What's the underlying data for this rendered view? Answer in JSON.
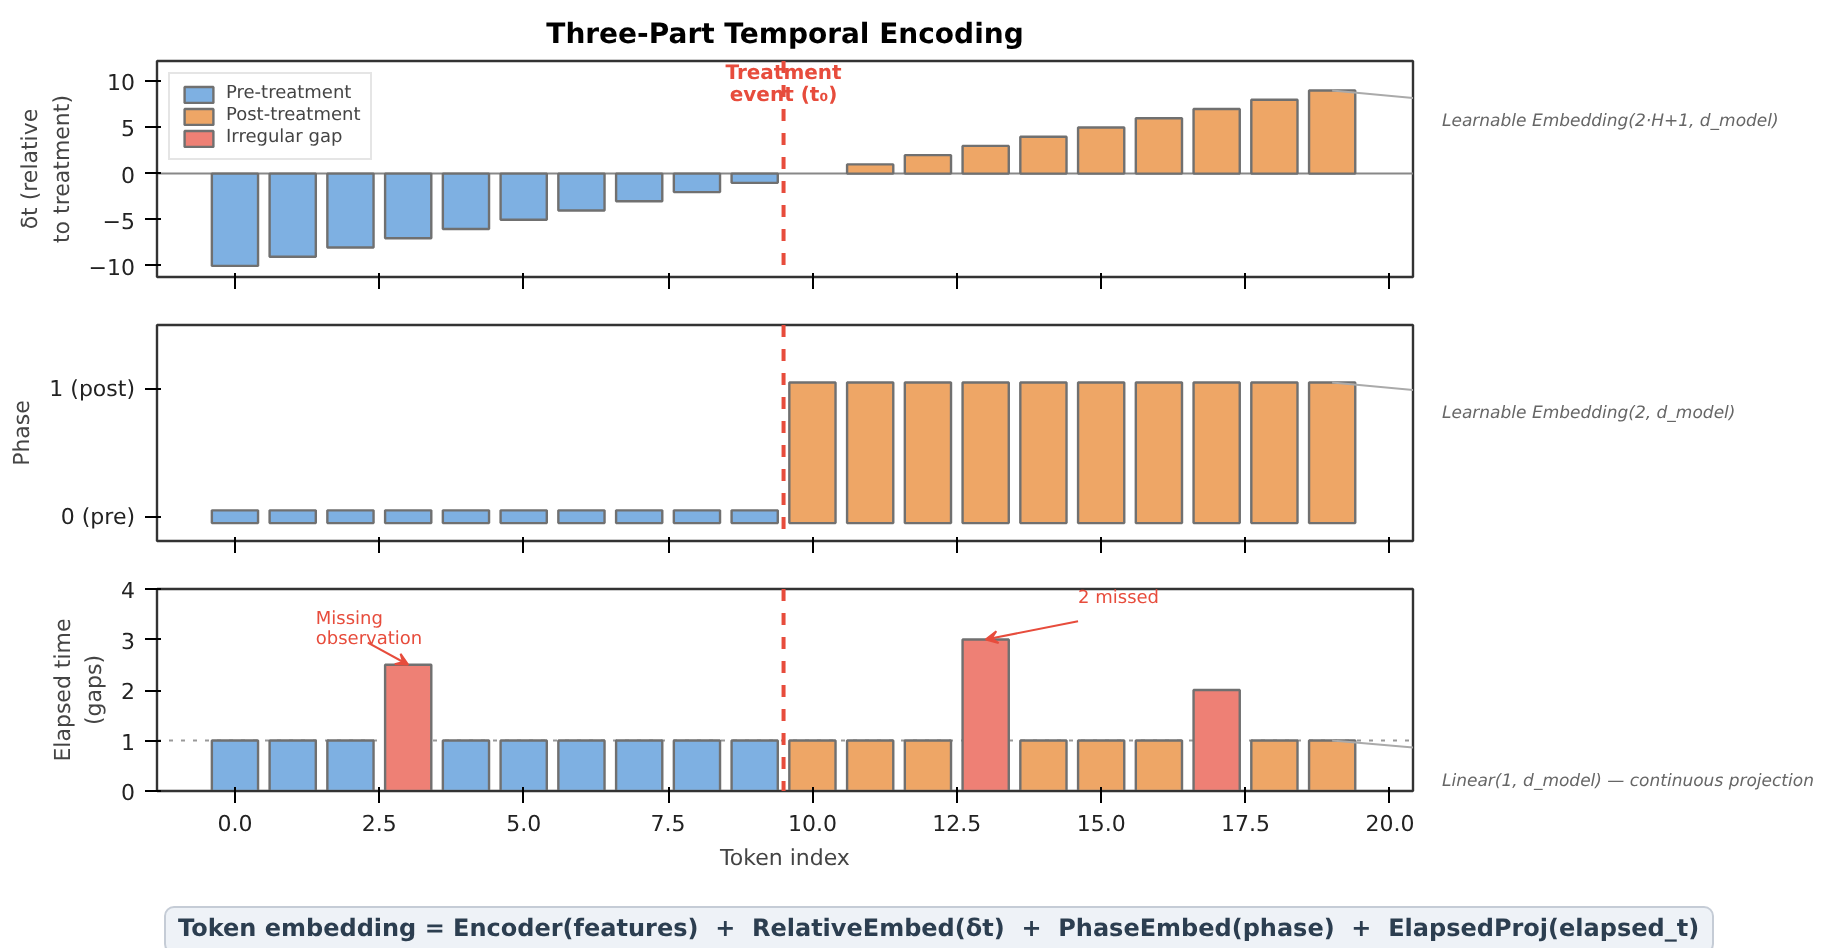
{
  "chart_data": [
    {
      "type": "bar",
      "title": "Three-Part Temporal Encoding",
      "ylabel": "δt (relative\nto treatment)",
      "x": [
        0,
        1,
        2,
        3,
        4,
        5,
        6,
        7,
        8,
        9,
        10,
        11,
        12,
        13,
        14,
        15,
        16,
        17,
        18,
        19
      ],
      "series": [
        {
          "name": "Pre-treatment",
          "color": "#7eb0e2",
          "values": [
            -10,
            -9,
            -8,
            -7,
            -6,
            -5,
            -4,
            -3,
            -2,
            -1,
            null,
            null,
            null,
            null,
            null,
            null,
            null,
            null,
            null,
            null
          ]
        },
        {
          "name": "Post-treatment",
          "color": "#eea666",
          "values": [
            null,
            null,
            null,
            null,
            null,
            null,
            null,
            null,
            null,
            null,
            null,
            1,
            2,
            3,
            4,
            5,
            6,
            7,
            8,
            9
          ]
        },
        {
          "name": "Irregular gap",
          "color": "#ee8075",
          "values": [
            null,
            null,
            null,
            null,
            null,
            null,
            null,
            null,
            null,
            null,
            null,
            null,
            null,
            null,
            null,
            null,
            null,
            null,
            null,
            null
          ]
        }
      ],
      "xlim": [
        -1.35,
        20.4
      ],
      "xticks": [
        0,
        2.5,
        5,
        7.5,
        10,
        12.5,
        15,
        17.5,
        20
      ],
      "ylim": [
        -11.2,
        12.2
      ],
      "yticks": [
        {
          "value": -10,
          "label": "−10"
        },
        {
          "value": -5,
          "label": "−5"
        },
        0,
        5,
        10
      ],
      "tick_labels": "y",
      "grid": false,
      "legend": "top left",
      "ref_lines": [
        {
          "axis": "y",
          "value": 0,
          "color": "#888888",
          "line_style": "solid"
        },
        {
          "axis": "x",
          "value": 9.5,
          "label": "Treatment\nevent (t₀)",
          "color": "#e74c3c",
          "line_style": "dashed"
        }
      ],
      "annotations": [
        {
          "text": "Learnable Embedding(2·H+1, d_model)",
          "x": 19,
          "y": 9
        }
      ]
    },
    {
      "type": "bar",
      "ylabel": "Phase",
      "x": [
        0,
        1,
        2,
        3,
        4,
        5,
        6,
        7,
        8,
        9,
        10,
        11,
        12,
        13,
        14,
        15,
        16,
        17,
        18,
        19
      ],
      "series": [
        {
          "color": "#7eb0e2",
          "base": [
            -0.05,
            -0.05,
            -0.05,
            -0.05,
            -0.05,
            -0.05,
            -0.05,
            -0.05,
            -0.05,
            -0.05,
            null,
            null,
            null,
            null,
            null,
            null,
            null,
            null,
            null,
            null
          ],
          "values": [
            0.1,
            0.1,
            0.1,
            0.1,
            0.1,
            0.1,
            0.1,
            0.1,
            0.1,
            0.1,
            null,
            null,
            null,
            null,
            null,
            null,
            null,
            null,
            null,
            null
          ]
        },
        {
          "color": "#eea666",
          "base": [
            null,
            null,
            null,
            null,
            null,
            null,
            null,
            null,
            null,
            null,
            -0.05,
            -0.05,
            -0.05,
            -0.05,
            -0.05,
            -0.05,
            -0.05,
            -0.05,
            -0.05,
            -0.05
          ],
          "values": [
            null,
            null,
            null,
            null,
            null,
            null,
            null,
            null,
            null,
            null,
            1.1,
            1.1,
            1.1,
            1.1,
            1.1,
            1.1,
            1.1,
            1.1,
            1.1,
            1.1
          ]
        }
      ],
      "xlim": [
        -1.35,
        20.4
      ],
      "xticks": [
        0,
        2.5,
        5,
        7.5,
        10,
        12.5,
        15,
        17.5,
        20
      ],
      "ylim": [
        -0.19,
        1.5
      ],
      "yticks": [
        {
          "value": 0,
          "label": "0 (pre)"
        },
        {
          "value": 1,
          "label": "1 (post)"
        }
      ],
      "tick_labels": "y",
      "grid": false,
      "ref_lines": [
        {
          "axis": "x",
          "value": 9.5,
          "color": "#e74c3c",
          "line_style": "dashed"
        }
      ],
      "annotations": [
        {
          "text": "Learnable Embedding(2, d_model)",
          "x": 19,
          "y": 1.05
        }
      ]
    },
    {
      "type": "bar",
      "ylabel": "Elapsed time\n(gaps)",
      "xlabel": "Token index",
      "x": [
        0,
        1,
        2,
        3,
        4,
        5,
        6,
        7,
        8,
        9,
        10,
        11,
        12,
        13,
        14,
        15,
        16,
        17,
        18,
        19
      ],
      "series": [
        {
          "color": "#7eb0e2",
          "values": [
            1,
            1,
            1,
            null,
            1,
            1,
            1,
            1,
            1,
            1,
            null,
            null,
            null,
            null,
            null,
            null,
            null,
            null,
            null,
            null
          ]
        },
        {
          "color": "#eea666",
          "values": [
            null,
            null,
            null,
            null,
            null,
            null,
            null,
            null,
            null,
            null,
            1,
            1,
            1,
            null,
            1,
            1,
            1,
            null,
            1,
            1
          ]
        },
        {
          "color": "#ee8075",
          "values": [
            null,
            null,
            null,
            2.5,
            null,
            null,
            null,
            null,
            null,
            null,
            null,
            null,
            null,
            3,
            null,
            null,
            null,
            2,
            null,
            null
          ]
        }
      ],
      "xlim": [
        -1.35,
        20.4
      ],
      "xticks": [
        {
          "value": 0,
          "label": "0.0"
        },
        {
          "value": 2.5,
          "label": "2.5"
        },
        {
          "value": 5,
          "label": "5.0"
        },
        {
          "value": 7.5,
          "label": "7.5"
        },
        {
          "value": 10,
          "label": "10.0"
        },
        {
          "value": 12.5,
          "label": "12.5"
        },
        {
          "value": 15,
          "label": "15.0"
        },
        {
          "value": 17.5,
          "label": "17.5"
        },
        {
          "value": 20,
          "label": "20.0"
        }
      ],
      "ylim": [
        0,
        4
      ],
      "yticks": [
        0,
        1,
        2,
        3,
        4
      ],
      "grid": false,
      "ref_lines": [
        {
          "axis": "x",
          "value": 9.5,
          "color": "#e74c3c",
          "line_style": "dashed"
        },
        {
          "axis": "y",
          "value": 1,
          "color": "#999999",
          "line_style": "dotted"
        }
      ],
      "annotations": [
        {
          "text": "Missing\nobservation",
          "x": 3,
          "y": 2.5
        },
        {
          "text": "2 missed",
          "x": 13,
          "y": 3
        },
        {
          "text": "Linear(1, d_model) — continuous projection",
          "x": 19,
          "y": 1
        },
        "Token embedding = Encoder(features)  +  RelativeEmbed(δt)  +  PhaseEmbed(phase)  +  ElapsedProj(elapsed_t)"
      ]
    }
  ]
}
